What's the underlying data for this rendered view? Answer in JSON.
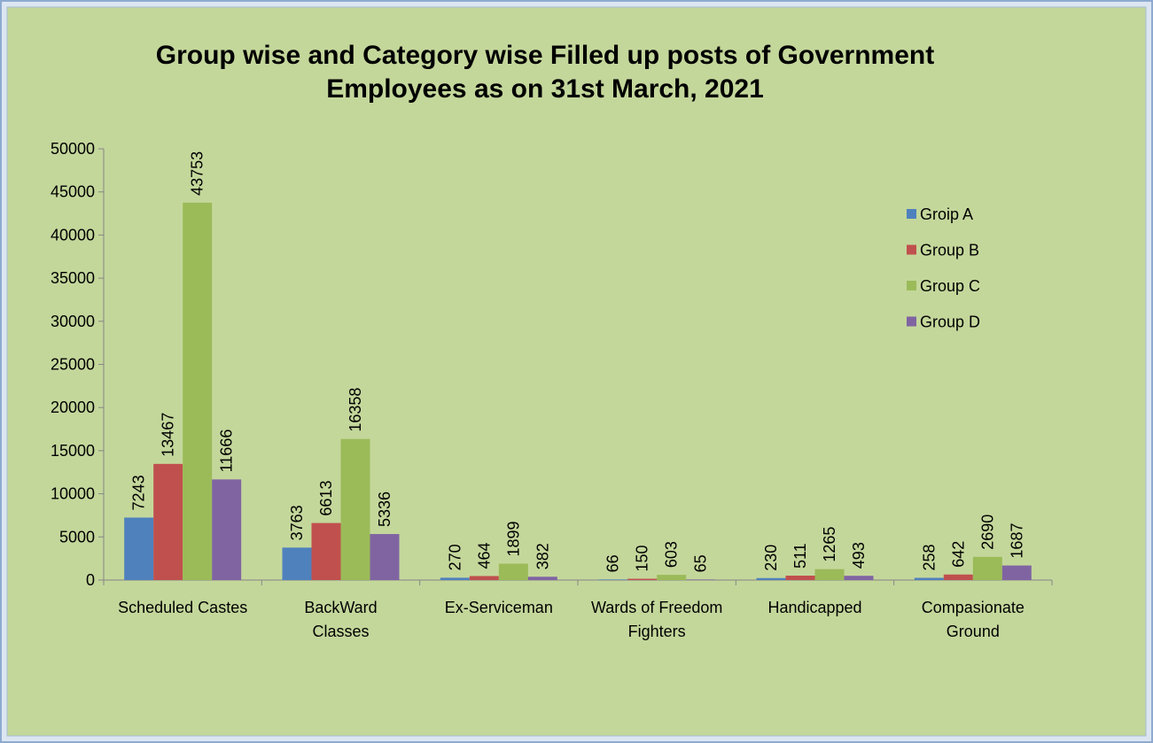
{
  "chart_data": {
    "type": "bar",
    "title": "Group wise and Category wise Filled up posts of Government Employees as on 31st March, 2021",
    "categories": [
      "Scheduled Castes",
      "BackWard Classes",
      "Ex-Serviceman",
      "Wards of Freedom Fighters",
      "Handicapped",
      "Compasionate Ground"
    ],
    "series": [
      {
        "name": "Groip A",
        "color": "#4f81bd",
        "values": [
          7243,
          3763,
          270,
          66,
          230,
          258
        ]
      },
      {
        "name": "Group B",
        "color": "#c0504d",
        "values": [
          13467,
          6613,
          464,
          150,
          511,
          642
        ]
      },
      {
        "name": "Group C",
        "color": "#9bbb59",
        "values": [
          43753,
          16358,
          1899,
          603,
          1265,
          2690
        ]
      },
      {
        "name": "Group D",
        "color": "#8064a2",
        "values": [
          11666,
          5336,
          382,
          65,
          493,
          1687
        ]
      }
    ],
    "ylim": [
      0,
      50000
    ],
    "yticks": [
      0,
      5000,
      10000,
      15000,
      20000,
      25000,
      30000,
      35000,
      40000,
      45000,
      50000
    ],
    "legend": "right"
  }
}
